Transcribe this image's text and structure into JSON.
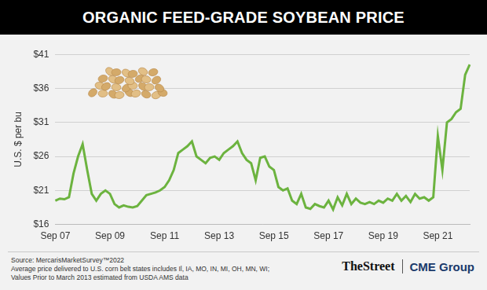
{
  "chart_data": {
    "type": "line",
    "title": "ORGANIC FEED-GRADE SOYBEAN PRICE",
    "y_label": "U.S. $ per bu",
    "categories": [
      "Sep 07",
      null,
      null,
      null,
      null,
      null,
      null,
      null,
      null,
      null,
      null,
      null,
      "Sep 09",
      null,
      null,
      null,
      null,
      null,
      null,
      null,
      null,
      null,
      null,
      null,
      "Sep 11",
      null,
      null,
      null,
      null,
      null,
      null,
      null,
      null,
      null,
      null,
      null,
      "Sep 13",
      null,
      null,
      null,
      null,
      null,
      null,
      null,
      null,
      null,
      null,
      null,
      "Sep 15",
      null,
      null,
      null,
      null,
      null,
      null,
      null,
      null,
      null,
      null,
      null,
      "Sep 17",
      null,
      null,
      null,
      null,
      null,
      null,
      null,
      null,
      null,
      null,
      null,
      "Sep 19",
      null,
      null,
      null,
      null,
      null,
      null,
      null,
      null,
      null,
      null,
      null,
      "Sep 21",
      null,
      null,
      null,
      null,
      null,
      null,
      null
    ],
    "values": [
      19.5,
      19.8,
      19.7,
      20,
      23.5,
      26,
      27.8,
      24,
      20.5,
      19.5,
      20.5,
      21,
      20.5,
      19,
      18.5,
      18.8,
      18.6,
      18.5,
      18.7,
      19.5,
      20.3,
      20.5,
      20.7,
      21,
      21.5,
      22.5,
      24,
      26.5,
      27,
      27.5,
      28.2,
      26,
      25.5,
      25,
      25.8,
      26,
      25.5,
      26.5,
      27,
      27.5,
      28.2,
      26.5,
      25.5,
      25,
      22.5,
      25.8,
      26,
      24.5,
      24,
      21.5,
      21,
      21.3,
      19.5,
      19,
      20.5,
      18.5,
      18.3,
      19,
      18.7,
      18.5,
      19.5,
      18.2,
      20,
      18.8,
      20.5,
      19,
      19.8,
      19.2,
      19,
      19.3,
      19,
      19.5,
      19.2,
      19.8,
      19.5,
      20.5,
      19.5,
      20.2,
      19.3,
      20.5,
      19.8,
      20,
      19.5,
      20,
      29,
      24,
      31,
      31.5,
      32.5,
      33,
      38,
      39.5
    ],
    "color": "#6cb33f",
    "ylim": [
      16,
      41
    ],
    "yticks": [
      {
        "value": 16,
        "label": "$16"
      },
      {
        "value": 21,
        "label": "$21"
      },
      {
        "value": 26,
        "label": "$26"
      },
      {
        "value": 31,
        "label": "$31"
      },
      {
        "value": 36,
        "label": "$36"
      },
      {
        "value": 41,
        "label": "$41"
      }
    ],
    "grid": true,
    "notes": [
      "Source: MercarisMarketSurvey™2022",
      "Average price delivered to U.S. corn belt states includes Il, IA, MO, IN, MI, OH, MN, WI;",
      "Values Prior to March 2013 estimated from USDA AMS data"
    ],
    "logos": [
      "TheStreet",
      "CME Group"
    ]
  }
}
